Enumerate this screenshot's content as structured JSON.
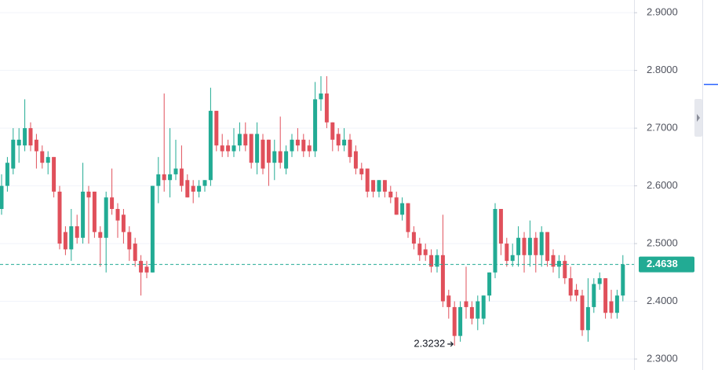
{
  "chart_data": {
    "type": "candlestick",
    "up_color": "#22ab94",
    "down_color": "#e0505b",
    "grid": true,
    "ylim": [
      2.281,
      2.922
    ],
    "yticks": [
      {
        "value": 2.3,
        "label": "2.3000"
      },
      {
        "value": 2.4,
        "label": "2.4000"
      },
      {
        "value": 2.5,
        "label": "2.5000"
      },
      {
        "value": 2.6,
        "label": "2.6000"
      },
      {
        "value": 2.7,
        "label": "2.7000"
      },
      {
        "value": 2.8,
        "label": "2.8000"
      },
      {
        "value": 2.9,
        "label": "2.9000"
      }
    ],
    "last_price": 2.4638,
    "open": [
      2.56,
      2.6,
      2.63,
      2.67,
      2.67,
      2.7,
      2.68,
      2.66,
      2.64,
      2.65,
      2.59,
      2.52,
      2.49,
      2.53,
      2.51,
      2.59,
      2.59,
      2.52,
      2.51,
      2.58,
      2.56,
      2.55,
      2.52,
      2.5,
      2.47,
      2.46,
      2.45,
      2.6,
      2.62,
      2.61,
      2.62,
      2.63,
      2.61,
      2.6,
      2.59,
      2.6,
      2.61,
      2.73,
      2.67,
      2.67,
      2.66,
      2.67,
      2.69,
      2.69,
      2.64,
      2.68,
      2.68,
      2.64,
      2.66,
      2.63,
      2.66,
      2.68,
      2.68,
      2.67,
      2.66,
      2.75,
      2.76,
      2.71,
      2.69,
      2.67,
      2.68,
      2.66,
      2.63,
      2.63,
      2.61,
      2.59,
      2.61,
      2.59,
      2.58,
      2.55,
      2.57,
      2.52,
      2.5,
      2.49,
      2.48,
      2.46,
      2.48,
      2.41,
      2.39,
      2.34,
      2.4,
      2.39,
      2.37,
      2.37,
      2.41,
      2.45,
      2.56,
      2.5,
      2.47,
      2.48,
      2.51,
      2.48,
      2.51,
      2.48,
      2.52,
      2.48,
      2.46,
      2.47,
      2.44,
      2.42,
      2.41,
      2.35,
      2.39,
      2.43,
      2.44,
      2.4,
      2.38,
      2.41
    ],
    "high": [
      2.62,
      2.65,
      2.7,
      2.7,
      2.75,
      2.71,
      2.69,
      2.67,
      2.66,
      2.65,
      2.6,
      2.53,
      2.56,
      2.55,
      2.64,
      2.6,
      2.59,
      2.53,
      2.59,
      2.63,
      2.57,
      2.56,
      2.53,
      2.51,
      2.48,
      2.47,
      2.6,
      2.65,
      2.76,
      2.7,
      2.68,
      2.67,
      2.62,
      2.61,
      2.61,
      2.61,
      2.77,
      2.73,
      2.69,
      2.68,
      2.7,
      2.71,
      2.71,
      2.69,
      2.71,
      2.69,
      2.68,
      2.68,
      2.72,
      2.67,
      2.69,
      2.7,
      2.69,
      2.68,
      2.78,
      2.79,
      2.79,
      2.71,
      2.7,
      2.7,
      2.69,
      2.67,
      2.64,
      2.63,
      2.61,
      2.61,
      2.61,
      2.6,
      2.59,
      2.58,
      2.57,
      2.53,
      2.51,
      2.5,
      2.49,
      2.49,
      2.55,
      2.42,
      2.4,
      2.4,
      2.46,
      2.4,
      2.41,
      2.41,
      2.45,
      2.57,
      2.56,
      2.51,
      2.5,
      2.53,
      2.52,
      2.54,
      2.52,
      2.53,
      2.52,
      2.49,
      2.48,
      2.48,
      2.46,
      2.43,
      2.42,
      2.44,
      2.44,
      2.45,
      2.44,
      2.42,
      2.42,
      2.48
    ],
    "low": [
      2.55,
      2.59,
      2.62,
      2.64,
      2.66,
      2.66,
      2.63,
      2.63,
      2.62,
      2.58,
      2.49,
      2.48,
      2.47,
      2.5,
      2.5,
      2.5,
      2.51,
      2.46,
      2.45,
      2.55,
      2.51,
      2.5,
      2.47,
      2.46,
      2.41,
      2.44,
      2.45,
      2.57,
      2.59,
      2.58,
      2.61,
      2.59,
      2.58,
      2.57,
      2.58,
      2.59,
      2.6,
      2.66,
      2.65,
      2.65,
      2.65,
      2.66,
      2.66,
      2.63,
      2.62,
      2.62,
      2.6,
      2.61,
      2.63,
      2.62,
      2.65,
      2.66,
      2.65,
      2.65,
      2.65,
      2.73,
      2.7,
      2.66,
      2.66,
      2.66,
      2.64,
      2.62,
      2.61,
      2.58,
      2.58,
      2.58,
      2.58,
      2.57,
      2.55,
      2.54,
      2.51,
      2.49,
      2.47,
      2.47,
      2.45,
      2.45,
      2.39,
      2.37,
      2.3232,
      2.33,
      2.37,
      2.36,
      2.35,
      2.36,
      2.4,
      2.44,
      2.48,
      2.46,
      2.46,
      2.46,
      2.45,
      2.46,
      2.45,
      2.46,
      2.46,
      2.45,
      2.44,
      2.43,
      2.4,
      2.4,
      2.34,
      2.33,
      2.38,
      2.42,
      2.37,
      2.37,
      2.37,
      2.4
    ],
    "close": [
      2.6,
      2.64,
      2.68,
      2.68,
      2.7,
      2.67,
      2.66,
      2.64,
      2.65,
      2.59,
      2.5,
      2.49,
      2.53,
      2.51,
      2.59,
      2.58,
      2.52,
      2.51,
      2.58,
      2.56,
      2.54,
      2.52,
      2.49,
      2.47,
      2.45,
      2.45,
      2.6,
      2.62,
      2.61,
      2.62,
      2.63,
      2.6,
      2.58,
      2.59,
      2.6,
      2.61,
      2.73,
      2.67,
      2.66,
      2.66,
      2.67,
      2.69,
      2.67,
      2.64,
      2.69,
      2.63,
      2.64,
      2.66,
      2.64,
      2.66,
      2.68,
      2.67,
      2.66,
      2.66,
      2.75,
      2.76,
      2.71,
      2.68,
      2.67,
      2.68,
      2.65,
      2.63,
      2.62,
      2.59,
      2.59,
      2.61,
      2.59,
      2.58,
      2.55,
      2.57,
      2.52,
      2.5,
      2.48,
      2.48,
      2.46,
      2.48,
      2.4,
      2.39,
      2.34,
      2.39,
      2.39,
      2.37,
      2.4,
      2.41,
      2.45,
      2.56,
      2.5,
      2.47,
      2.48,
      2.51,
      2.48,
      2.51,
      2.48,
      2.52,
      2.47,
      2.46,
      2.47,
      2.44,
      2.41,
      2.41,
      2.35,
      2.39,
      2.43,
      2.44,
      2.38,
      2.38,
      2.41,
      2.4638
    ]
  }
}
